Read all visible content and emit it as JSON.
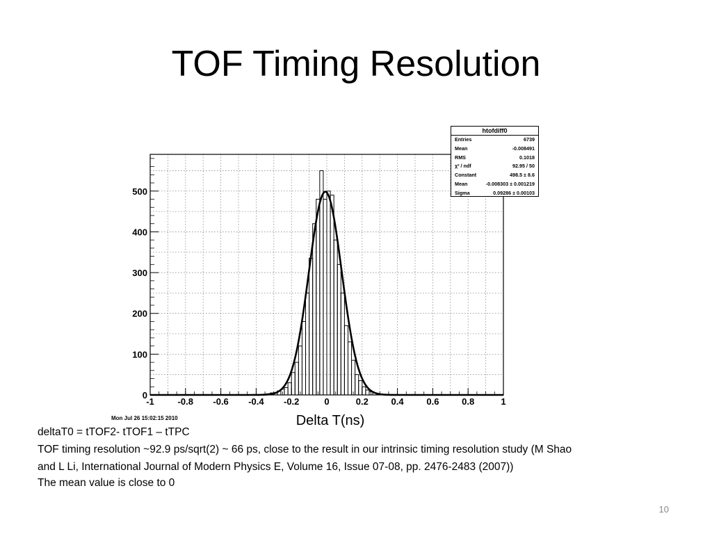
{
  "slide": {
    "title": "TOF Timing Resolution",
    "notes": [
      "deltaT0 = tTOF2- tTOF1 – tTPC",
      "TOF timing resolution ~92.9 ps/sqrt(2) ~ 66 ps, close to the result in our intrinsic timing resolution study (M Shao",
      "and L Li, International Journal of Modern Physics E, Volume 16, Issue 07-08, pp. 2476-2483 (2007))",
      "The mean value is  close to 0"
    ],
    "page_number": "10",
    "timestamp": "Mon Jul 26 15:02:15 2010"
  },
  "stats_box": {
    "title": "htofdiff0",
    "rows": [
      {
        "label": "Entries",
        "value": "6739"
      },
      {
        "label": "Mean",
        "value": "-0.008491"
      },
      {
        "label": "RMS",
        "value": "0.1018"
      },
      {
        "label": "χ² / ndf",
        "value": "92.95 / 50"
      },
      {
        "label": "Constant",
        "value": "498.5 ± 8.6"
      },
      {
        "label": "Mean",
        "value": "-0.008303 ± 0.001219"
      },
      {
        "label": "Sigma",
        "value": "0.09286 ± 0.00103"
      }
    ]
  },
  "chart_data": {
    "type": "bar",
    "title": "",
    "xlabel": "Delta T(ns)",
    "ylabel": "",
    "xlim": [
      -1,
      1
    ],
    "ylim": [
      0,
      590
    ],
    "grid": true,
    "x_ticks": [
      -1,
      -0.8,
      -0.6,
      -0.4,
      -0.2,
      0,
      0.2,
      0.4,
      0.6,
      0.8,
      1
    ],
    "x_tick_labels": [
      "-1",
      "-0.8",
      "-0.6",
      "-0.4",
      "-0.2",
      "0",
      "0.2",
      "0.4",
      "0.6",
      "0.8",
      "1"
    ],
    "y_ticks": [
      0,
      100,
      200,
      300,
      400,
      500
    ],
    "y_tick_labels": [
      "0",
      "100",
      "200",
      "300",
      "400",
      "500"
    ],
    "bin_width": 0.02,
    "bin_centers": [
      -0.35,
      -0.33,
      -0.31,
      -0.29,
      -0.27,
      -0.25,
      -0.23,
      -0.21,
      -0.19,
      -0.17,
      -0.15,
      -0.13,
      -0.11,
      -0.09,
      -0.07,
      -0.05,
      -0.03,
      -0.01,
      0.01,
      0.03,
      0.05,
      0.07,
      0.09,
      0.11,
      0.13,
      0.15,
      0.17,
      0.19,
      0.21,
      0.23,
      0.25,
      0.27,
      0.29,
      0.31,
      0.33,
      0.35
    ],
    "counts": [
      2,
      3,
      5,
      6,
      10,
      14,
      18,
      30,
      55,
      80,
      120,
      180,
      250,
      335,
      420,
      480,
      550,
      480,
      500,
      490,
      380,
      320,
      250,
      170,
      130,
      85,
      50,
      35,
      20,
      12,
      8,
      5,
      3,
      2,
      1,
      1
    ],
    "fit": {
      "name": "gaus",
      "constant": 498.5,
      "mean": -0.008303,
      "sigma": 0.09286
    }
  }
}
